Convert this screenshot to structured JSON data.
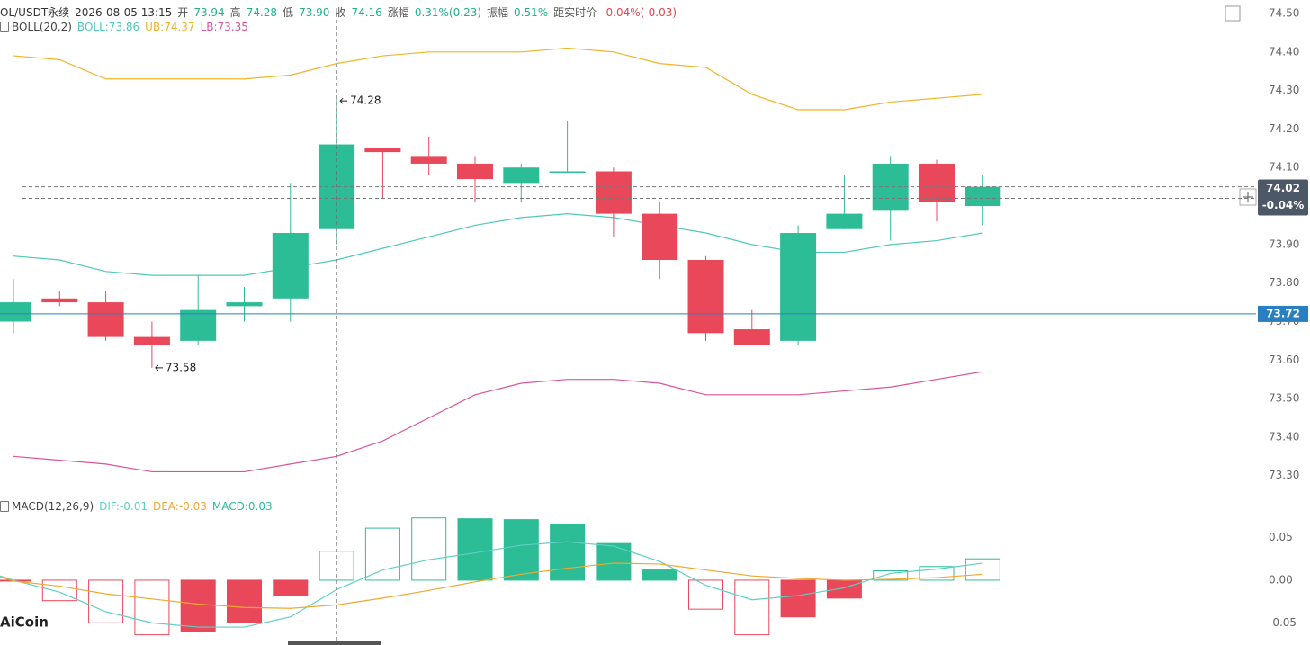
{
  "chart_data": [
    {
      "type": "candlestick",
      "header": [
        {
          "text": "OL/USDT永续",
          "color": "#333333"
        },
        {
          "text": "2026-08-05 13:15",
          "color": "#333333"
        },
        {
          "text": "开",
          "color": "#555555"
        },
        {
          "text": "73.94",
          "color": "#20b08a"
        },
        {
          "text": "高",
          "color": "#555555"
        },
        {
          "text": "74.28",
          "color": "#20b08a"
        },
        {
          "text": "低",
          "color": "#555555"
        },
        {
          "text": "73.90",
          "color": "#20b08a"
        },
        {
          "text": "收",
          "color": "#555555"
        },
        {
          "text": "74.16",
          "color": "#20b08a"
        },
        {
          "text": "涨幅",
          "color": "#555555"
        },
        {
          "text": "0.31%(0.23)",
          "color": "#20b08a"
        },
        {
          "text": "振幅",
          "color": "#555555"
        },
        {
          "text": "0.51%",
          "color": "#20b08a"
        },
        {
          "text": "距实时价",
          "color": "#555555"
        },
        {
          "text": "-0.04%(-0.03)",
          "color": "#e0464e"
        }
      ],
      "indicator": "BOLL(20,2)",
      "up_color": "#2dbd96",
      "down_color": "#e8485a",
      "open": [
        73.7,
        73.76,
        73.75,
        73.66,
        73.65,
        73.74,
        73.76,
        73.94,
        74.15,
        74.13,
        74.11,
        74.06,
        74.09,
        74.09,
        73.98,
        73.86,
        73.68,
        73.65,
        73.94,
        73.99,
        74.11,
        74.0
      ],
      "high": [
        73.81,
        73.78,
        73.78,
        73.7,
        73.82,
        73.79,
        74.06,
        74.28,
        74.15,
        74.18,
        74.13,
        74.11,
        74.22,
        74.1,
        74.01,
        73.87,
        73.73,
        73.95,
        74.08,
        74.13,
        74.12,
        74.08
      ],
      "low": [
        73.67,
        73.74,
        73.65,
        73.58,
        73.64,
        73.7,
        73.7,
        73.9,
        74.02,
        74.08,
        74.01,
        74.01,
        74.09,
        73.92,
        73.81,
        73.65,
        73.64,
        73.64,
        73.94,
        73.91,
        73.96,
        73.95
      ],
      "close": [
        73.75,
        73.75,
        73.66,
        73.64,
        73.73,
        73.75,
        73.93,
        74.16,
        74.14,
        74.11,
        74.07,
        74.1,
        74.09,
        73.98,
        73.86,
        73.67,
        73.64,
        73.93,
        73.98,
        74.11,
        74.01,
        74.05
      ],
      "series": [
        {
          "name": "BOLL:73.86",
          "color": "#4fc9b8",
          "values": [
            73.87,
            73.86,
            73.83,
            73.82,
            73.82,
            73.82,
            73.84,
            73.86,
            73.89,
            73.92,
            73.95,
            73.97,
            73.98,
            73.97,
            73.95,
            73.93,
            73.9,
            73.88,
            73.88,
            73.9,
            73.91,
            73.93
          ]
        },
        {
          "name": "UB:74.37",
          "color": "#f0b429",
          "values": [
            74.39,
            74.38,
            74.33,
            74.33,
            74.33,
            74.33,
            74.34,
            74.37,
            74.39,
            74.4,
            74.4,
            74.4,
            74.41,
            74.4,
            74.37,
            74.36,
            74.29,
            74.25,
            74.25,
            74.27,
            74.28,
            74.29
          ]
        },
        {
          "name": "LB:73.35",
          "color": "#d9559b",
          "values": [
            73.35,
            73.34,
            73.33,
            73.31,
            73.31,
            73.31,
            73.33,
            73.35,
            73.39,
            73.45,
            73.51,
            73.54,
            73.55,
            73.55,
            73.54,
            73.51,
            73.51,
            73.51,
            73.52,
            73.53,
            73.55,
            73.57
          ]
        }
      ],
      "price_line": 73.72,
      "price_line_color": "#2a7fc0",
      "last_price": 74.02,
      "last_change": "-0.04%",
      "ylim": [
        73.255,
        74.535
      ],
      "yticks": [
        {
          "value": 74.5,
          "label": "74.50"
        },
        {
          "value": 74.4,
          "label": "74.40"
        },
        {
          "value": 74.3,
          "label": "74.30"
        },
        {
          "value": 74.2,
          "label": "74.20"
        },
        {
          "value": 74.1,
          "label": "74.10"
        },
        {
          "value": 74.0,
          "label": "74.00"
        },
        {
          "value": 73.9,
          "label": "73.90"
        },
        {
          "value": 73.8,
          "label": "73.80"
        },
        {
          "value": 73.7,
          "label": "73.70"
        },
        {
          "value": 73.6,
          "label": "73.60"
        },
        {
          "value": 73.5,
          "label": "73.50"
        },
        {
          "value": 73.4,
          "label": "73.40"
        },
        {
          "value": 73.3,
          "label": "73.30"
        }
      ]
    },
    {
      "type": "macd",
      "indicator": "MACD(12,26,9)",
      "values": [
        -0.001,
        -0.024,
        -0.05,
        -0.064,
        -0.06,
        -0.05,
        -0.018,
        0.034,
        0.061,
        0.073,
        0.072,
        0.071,
        0.065,
        0.043,
        0.012,
        -0.034,
        -0.064,
        -0.043,
        -0.021,
        0.011,
        0.016,
        0.025
      ],
      "hollow": [
        false,
        true,
        true,
        true,
        false,
        false,
        false,
        true,
        true,
        true,
        false,
        false,
        false,
        false,
        false,
        true,
        true,
        false,
        false,
        true,
        true,
        true
      ],
      "bar_name": "MACD:0.03",
      "up_color": "#2dbd96",
      "down_color": "#e8485a",
      "series": [
        {
          "name": "DIF:-0.01",
          "color": "#5fcfc2",
          "values": [
            0.0,
            -0.014,
            -0.037,
            -0.05,
            -0.055,
            -0.055,
            -0.043,
            -0.011,
            0.012,
            0.024,
            0.032,
            0.041,
            0.045,
            0.04,
            0.022,
            -0.006,
            -0.023,
            -0.018,
            -0.009,
            0.008,
            0.013,
            0.02
          ]
        },
        {
          "name": "DEA:-0.03",
          "color": "#f0a830",
          "values": [
            -0.001,
            -0.007,
            -0.016,
            -0.022,
            -0.028,
            -0.032,
            -0.033,
            -0.029,
            -0.021,
            -0.012,
            -0.002,
            0.007,
            0.014,
            0.02,
            0.019,
            0.012,
            0.005,
            0.002,
            0.0,
            0.001,
            0.003,
            0.007
          ]
        }
      ],
      "ylim": [
        -0.076,
        0.098
      ],
      "yticks": [
        0.05,
        {
          "value": 0,
          "label": "0.00"
        },
        -0.05
      ]
    }
  ],
  "watermark": "AiCoin"
}
